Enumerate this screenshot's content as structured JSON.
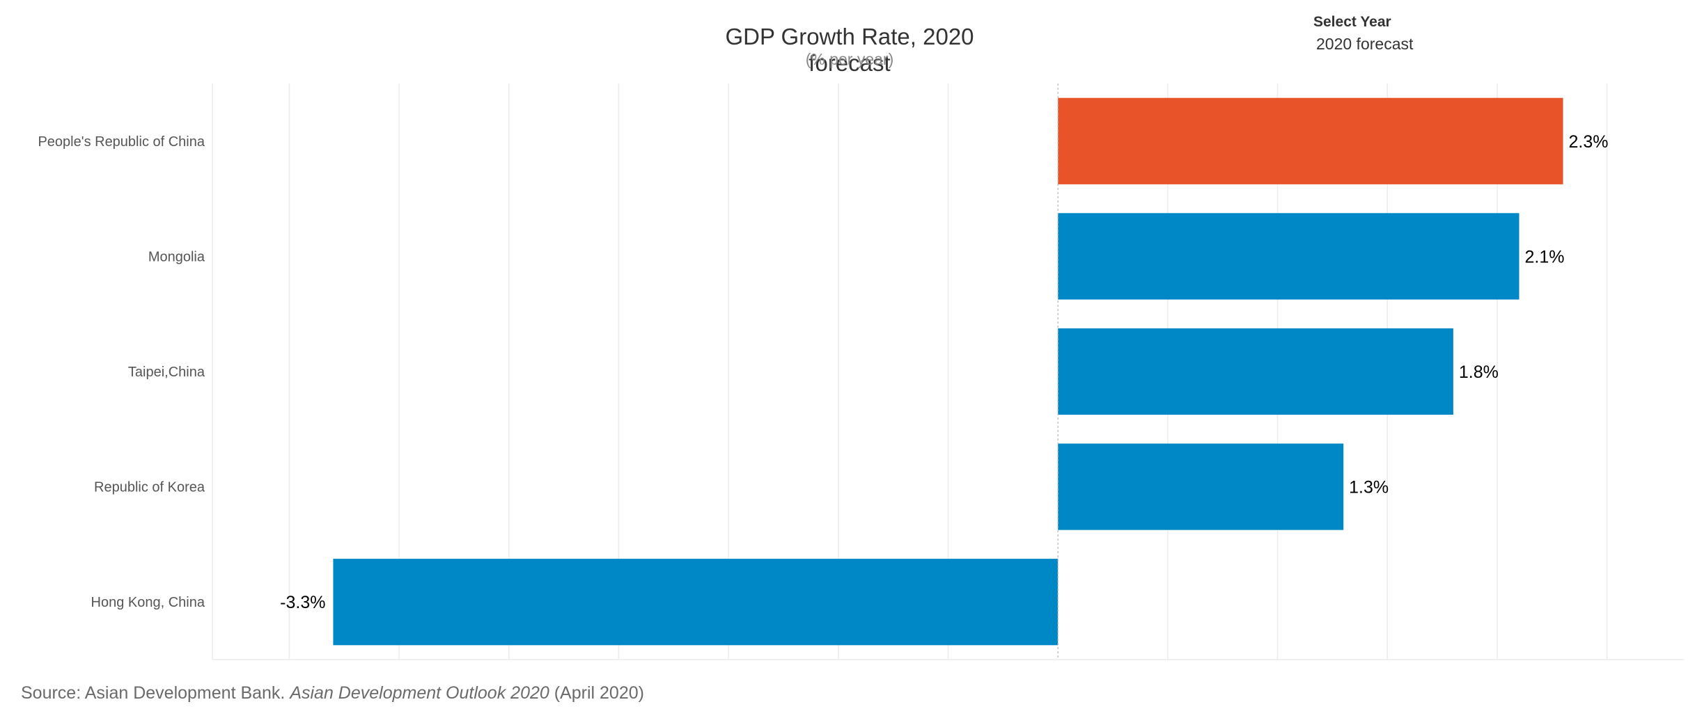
{
  "header": {
    "title": "GDP Growth Rate, 2020 forecast",
    "subtitle": "(% per year)"
  },
  "filter": {
    "label": "Select Year",
    "value": "2020 forecast"
  },
  "source": {
    "prefix": "Source: Asian Development Bank. ",
    "publication": "Asian Development Outlook 2020",
    "suffix": " (April 2020)"
  },
  "colors": {
    "highlight": "#e8532a",
    "default": "#0088c6",
    "grid": "#ececec"
  },
  "chart_data": {
    "type": "bar",
    "orientation": "horizontal",
    "categories": [
      "People's Republic of China",
      "Mongolia",
      "Taipei,China",
      "Republic of Korea",
      "Hong Kong, China"
    ],
    "values": [
      2.3,
      2.1,
      1.8,
      1.3,
      -3.3
    ],
    "value_labels": [
      "2.3%",
      "2.1%",
      "1.8%",
      "1.3%",
      "-3.3%"
    ],
    "highlighted": [
      "People's Republic of China"
    ],
    "xlim": [
      -3.85,
      2.85
    ],
    "grid": true,
    "title": "GDP Growth Rate, 2020 forecast",
    "subtitle": "(% per year)"
  }
}
